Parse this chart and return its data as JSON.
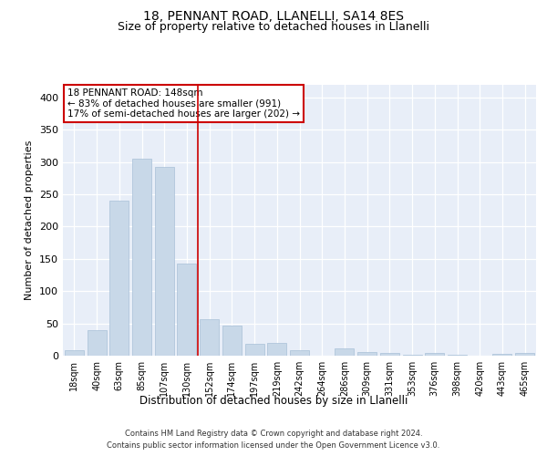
{
  "title1": "18, PENNANT ROAD, LLANELLI, SA14 8ES",
  "title2": "Size of property relative to detached houses in Llanelli",
  "xlabel": "Distribution of detached houses by size in Llanelli",
  "ylabel": "Number of detached properties",
  "categories": [
    "18sqm",
    "40sqm",
    "63sqm",
    "85sqm",
    "107sqm",
    "130sqm",
    "152sqm",
    "174sqm",
    "197sqm",
    "219sqm",
    "242sqm",
    "264sqm",
    "286sqm",
    "309sqm",
    "331sqm",
    "353sqm",
    "376sqm",
    "398sqm",
    "420sqm",
    "443sqm",
    "465sqm"
  ],
  "values": [
    8,
    39,
    240,
    305,
    292,
    143,
    57,
    46,
    19,
    20,
    9,
    0,
    11,
    5,
    4,
    2,
    4,
    1,
    0,
    3,
    4
  ],
  "bar_color": "#c8d8e8",
  "bar_edgecolor": "#a8c0d8",
  "vline_color": "#cc0000",
  "vline_pos": 5.5,
  "annotation_line1": "18 PENNANT ROAD: 148sqm",
  "annotation_line2": "← 83% of detached houses are smaller (991)",
  "annotation_line3": "17% of semi-detached houses are larger (202) →",
  "annotation_box_edgecolor": "#cc0000",
  "annotation_box_facecolor": "#ffffff",
  "footer1": "Contains HM Land Registry data © Crown copyright and database right 2024.",
  "footer2": "Contains public sector information licensed under the Open Government Licence v3.0.",
  "ylim": [
    0,
    420
  ],
  "plot_bg_color": "#e8eef8",
  "title1_fontsize": 10,
  "title2_fontsize": 9,
  "tick_fontsize": 7,
  "ylabel_fontsize": 8,
  "xlabel_fontsize": 8.5,
  "annotation_fontsize": 7.5,
  "footer_fontsize": 6,
  "yticks": [
    0,
    50,
    100,
    150,
    200,
    250,
    300,
    350,
    400
  ]
}
